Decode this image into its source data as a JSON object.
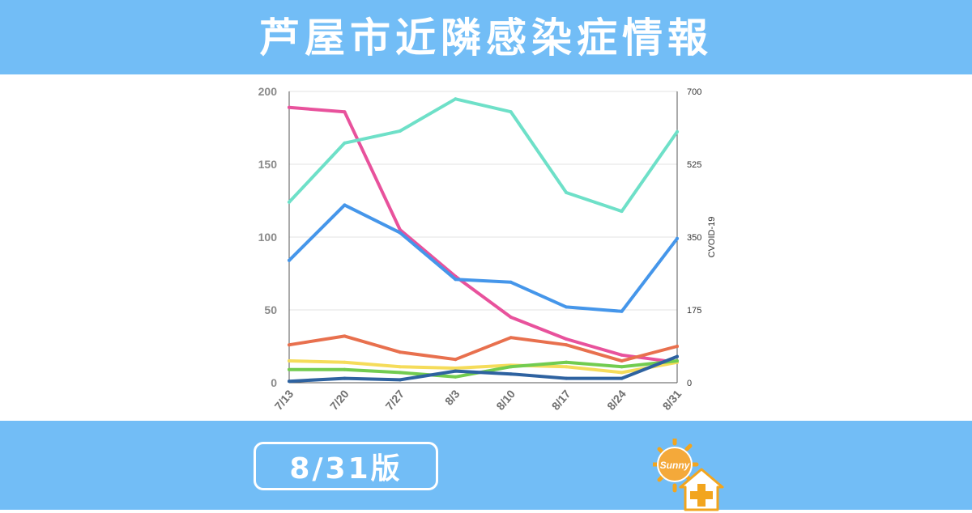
{
  "header": {
    "title": "芦屋市近隣感染症情報"
  },
  "footer": {
    "edition_label": "8/31版",
    "logo_text": "Sunny"
  },
  "colors": {
    "band": "#72bdf6",
    "grid": "#e3e3e3",
    "series": [
      "#e8529c",
      "#6ee0c8",
      "#4596ea",
      "#e8704e",
      "#f5dc5a",
      "#72cc50",
      "#2e62a0"
    ]
  },
  "chart_data": {
    "type": "line",
    "categories": [
      "7/13",
      "7/20",
      "7/27",
      "8/3",
      "8/10",
      "8/17",
      "8/24",
      "8/31"
    ],
    "y_left": {
      "ylim": [
        0,
        200
      ],
      "ticks": [
        "0",
        "50",
        "100",
        "150",
        "200"
      ]
    },
    "y_right": {
      "ylim": [
        0,
        700
      ],
      "ticks": [
        "0",
        "175",
        "350",
        "525",
        "700"
      ],
      "label": "CVOID-19"
    },
    "grid": true,
    "series": [
      {
        "axis": "left",
        "values": [
          189,
          186,
          105,
          73,
          45,
          30,
          19,
          14
        ]
      },
      {
        "axis": "right",
        "values": [
          434,
          576,
          605,
          682,
          651,
          457,
          412,
          603
        ]
      },
      {
        "axis": "left",
        "values": [
          84,
          122,
          103,
          71,
          69,
          52,
          49,
          99
        ]
      },
      {
        "axis": "left",
        "values": [
          26,
          32,
          21,
          16,
          31,
          26,
          15,
          25
        ]
      },
      {
        "axis": "left",
        "values": [
          15,
          14,
          11,
          10,
          12,
          11,
          7,
          14
        ]
      },
      {
        "axis": "left",
        "values": [
          9,
          9,
          7,
          4,
          11,
          14,
          11,
          15
        ]
      },
      {
        "axis": "left",
        "values": [
          1,
          3,
          2,
          8,
          6,
          3,
          3,
          18
        ]
      }
    ]
  }
}
